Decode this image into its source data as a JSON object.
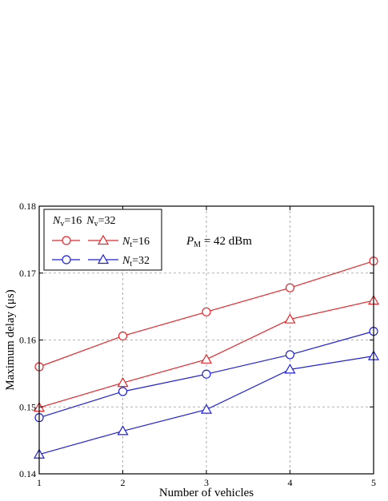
{
  "chart_data": {
    "type": "line",
    "xlabel": "Number of vehicles",
    "ylabel": "Maximum delay (μs)",
    "x": [
      1,
      2,
      3,
      4,
      5
    ],
    "xlim": [
      1,
      5
    ],
    "ylim": [
      0.14,
      0.18
    ],
    "xticks": [
      "1",
      "2",
      "3",
      "4",
      "5"
    ],
    "yticks": [
      "0.14",
      "0.15",
      "0.16",
      "0.17",
      "0.18"
    ],
    "grid": true,
    "legend_position": "top-left",
    "legend_header": {
      "nv16_sym": "N",
      "nv16_sub": "v",
      "nv16_val": "=16",
      "nv32_sym": "N",
      "nv32_sub": "v",
      "nv32_val": "=32"
    },
    "legend_rows": [
      {
        "sym": "N",
        "sub": "t",
        "val": "=16",
        "color": "#e8262b"
      },
      {
        "sym": "N",
        "sub": "t",
        "val": "=32",
        "color": "#1f1fe0"
      }
    ],
    "annotation": {
      "sym": "P",
      "sub": "M",
      "val": " = 42 dBm"
    },
    "series": [
      {
        "nv": 16,
        "nt": 16,
        "marker": "circle",
        "color": "#e8262b",
        "values": [
          0.156,
          0.1606,
          0.1642,
          0.1678,
          0.1718
        ]
      },
      {
        "nv": 32,
        "nt": 16,
        "marker": "triangle",
        "color": "#e8262b",
        "values": [
          0.1499,
          0.1536,
          0.1571,
          0.1631,
          0.1659
        ]
      },
      {
        "nv": 16,
        "nt": 32,
        "marker": "circle",
        "color": "#1f1fe0",
        "values": [
          0.1484,
          0.1523,
          0.1549,
          0.1578,
          0.1613
        ]
      },
      {
        "nv": 32,
        "nt": 32,
        "marker": "triangle",
        "color": "#1f1fe0",
        "values": [
          0.1429,
          0.1464,
          0.1496,
          0.1556,
          0.1576
        ]
      }
    ]
  }
}
